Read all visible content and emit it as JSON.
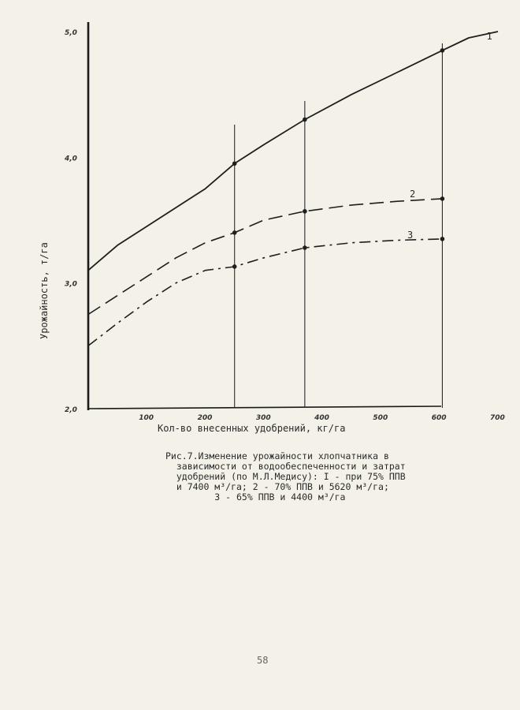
{
  "chart_data": {
    "type": "line",
    "xlabel": "Кол-во внесенных удобрений, кг/га",
    "ylabel": "Урожайность, т/га",
    "xlim": [
      0,
      700
    ],
    "ylim": [
      2.0,
      5.0
    ],
    "x_ticks": [
      "100",
      "200",
      "300",
      "400",
      "500",
      "600",
      "700"
    ],
    "y_ticks": [
      "2,0",
      "3,0",
      "4,0",
      "5,0"
    ],
    "grid": false,
    "reference_lines_x": [
      250,
      370,
      605
    ],
    "series": [
      {
        "name": "I",
        "style": "solid",
        "points": [
          [
            0,
            3.1
          ],
          [
            50,
            3.3
          ],
          [
            100,
            3.45
          ],
          [
            150,
            3.6
          ],
          [
            200,
            3.75
          ],
          [
            250,
            3.95
          ],
          [
            300,
            4.1
          ],
          [
            370,
            4.3
          ],
          [
            450,
            4.5
          ],
          [
            530,
            4.68
          ],
          [
            605,
            4.85
          ],
          [
            650,
            4.95
          ],
          [
            700,
            5.0
          ]
        ],
        "markers": [
          [
            250,
            3.95
          ],
          [
            370,
            4.3
          ],
          [
            605,
            4.85
          ]
        ]
      },
      {
        "name": "2",
        "style": "dashed",
        "points": [
          [
            0,
            2.75
          ],
          [
            50,
            2.9
          ],
          [
            100,
            3.05
          ],
          [
            150,
            3.2
          ],
          [
            200,
            3.32
          ],
          [
            250,
            3.4
          ],
          [
            300,
            3.5
          ],
          [
            370,
            3.57
          ],
          [
            450,
            3.62
          ],
          [
            530,
            3.65
          ],
          [
            605,
            3.67
          ]
        ],
        "markers": [
          [
            250,
            3.4
          ],
          [
            370,
            3.57
          ],
          [
            605,
            3.67
          ]
        ]
      },
      {
        "name": "3",
        "style": "dashdot",
        "points": [
          [
            0,
            2.5
          ],
          [
            50,
            2.68
          ],
          [
            100,
            2.85
          ],
          [
            150,
            3.0
          ],
          [
            200,
            3.1
          ],
          [
            250,
            3.13
          ],
          [
            300,
            3.2
          ],
          [
            370,
            3.28
          ],
          [
            450,
            3.32
          ],
          [
            530,
            3.34
          ],
          [
            605,
            3.35
          ]
        ],
        "markers": [
          [
            250,
            3.13
          ],
          [
            370,
            3.28
          ],
          [
            605,
            3.35
          ]
        ]
      }
    ]
  },
  "caption": "Рис.7.Изменение урожайности хлопчатника в\n  зависимости от водообеспеченности и затрат\n  удобрений (по М.Л.Медису): I - при 75% ППВ\n  и 7400 м³/га; 2 - 70% ППВ и 5620 м³/га;\n         3 - 65% ППВ и 4400 м³/га",
  "page_number": "58"
}
